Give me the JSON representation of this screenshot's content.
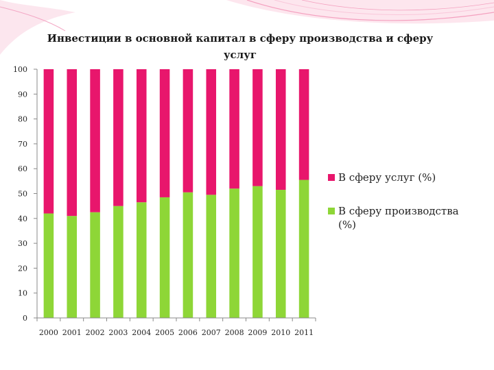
{
  "chart_data": {
    "type": "bar",
    "stacked": true,
    "title": "Инвестиции в основной капитал в сферу производства и сферу услуг",
    "categories": [
      "2000",
      "2001",
      "2002",
      "2003",
      "2004",
      "2005",
      "2006",
      "2007",
      "2008",
      "2009",
      "2010",
      "2011"
    ],
    "series": [
      {
        "name": "В сферу производства (%)",
        "color": "#8ed637",
        "values": [
          42,
          41,
          42.5,
          45,
          46.5,
          48.5,
          50.5,
          49.5,
          52,
          53,
          51.5,
          55.5
        ]
      },
      {
        "name": "В сферу услуг (%)",
        "color": "#e8166c",
        "values": [
          58,
          59,
          57.5,
          55,
          53.5,
          51.5,
          49.5,
          50.5,
          48,
          47,
          48.5,
          44.5
        ]
      }
    ],
    "ylim": [
      0,
      100
    ],
    "yticks": [
      0,
      10,
      20,
      30,
      40,
      50,
      60,
      70,
      80,
      90,
      100
    ],
    "grid": false,
    "legend_position": "right"
  }
}
